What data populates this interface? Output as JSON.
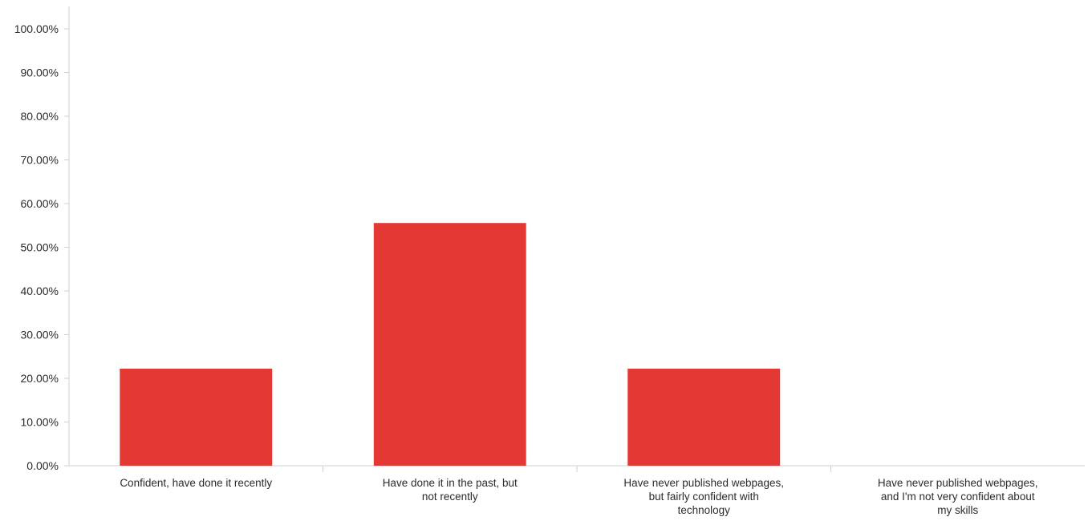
{
  "chart_data": {
    "type": "bar",
    "title": "",
    "xlabel": "",
    "ylabel": "",
    "categories": [
      "Confident, have done it recently",
      "Have done it in the past, but not recently",
      "Have never published webpages, but fairly confident with technology",
      "Have never published webpages, and I'm not very confident about my skills"
    ],
    "category_label_lines": [
      [
        "Confident, have done it recently"
      ],
      [
        "Have done it in the past, but",
        "not recently"
      ],
      [
        "Have never published webpages,",
        "but fairly confident with",
        "technology"
      ],
      [
        "Have never published webpages,",
        "and I'm not very confident about",
        "my skills"
      ]
    ],
    "values": [
      22.22,
      55.56,
      22.22,
      0
    ],
    "ylim": [
      0,
      100
    ],
    "yticks": [
      "0.00%",
      "10.00%",
      "20.00%",
      "30.00%",
      "40.00%",
      "50.00%",
      "60.00%",
      "70.00%",
      "80.00%",
      "90.00%",
      "100.00%"
    ],
    "bar_color": "#e43834",
    "grid": false,
    "legend": "none"
  }
}
